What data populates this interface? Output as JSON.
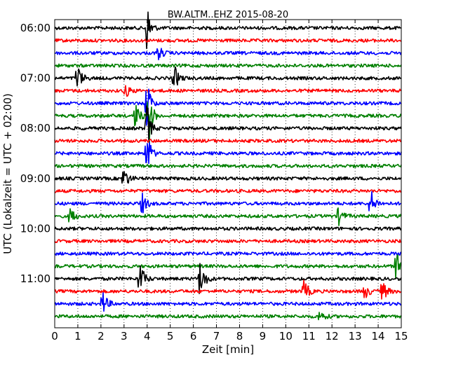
{
  "chart_data": {
    "type": "line",
    "title": "BW.ALTM..EHZ 2015-08-20",
    "xlabel": "Zeit  [min]",
    "ylabel": "UTC (Lokalzeit = UTC + 02:00)",
    "xlim": [
      0,
      15
    ],
    "x_ticks": [
      "0",
      "1",
      "2",
      "3",
      "4",
      "5",
      "6",
      "7",
      "8",
      "9",
      "10",
      "11",
      "12",
      "13",
      "14",
      "15"
    ],
    "y_ticks": [
      "06:00",
      "07:00",
      "08:00",
      "09:00",
      "10:00",
      "11:00"
    ],
    "grid": true,
    "trace_interval_min": 15,
    "first_trace": "06:00",
    "trace_count": 24,
    "trace_colors": [
      "#000000",
      "#ff0000",
      "#0000ff",
      "#008000"
    ],
    "events": [
      {
        "trace": "06:00",
        "minute": 4.0,
        "amplitude": 1.0
      },
      {
        "trace": "06:30",
        "minute": 4.5,
        "amplitude": 0.25
      },
      {
        "trace": "07:00",
        "minute": 1.0,
        "amplitude": 0.45
      },
      {
        "trace": "07:00",
        "minute": 5.2,
        "amplitude": 0.4
      },
      {
        "trace": "07:15",
        "minute": 3.1,
        "amplitude": 0.2
      },
      {
        "trace": "07:30",
        "minute": 4.0,
        "amplitude": 1.0
      },
      {
        "trace": "07:45",
        "minute": 4.1,
        "amplitude": 1.0
      },
      {
        "trace": "07:45",
        "minute": 3.5,
        "amplitude": 0.45
      },
      {
        "trace": "08:00",
        "minute": 4.0,
        "amplitude": 1.0
      },
      {
        "trace": "08:30",
        "minute": 4.0,
        "amplitude": 1.0
      },
      {
        "trace": "09:00",
        "minute": 3.0,
        "amplitude": 0.4
      },
      {
        "trace": "09:30",
        "minute": 3.8,
        "amplitude": 0.35
      },
      {
        "trace": "09:30",
        "minute": 13.7,
        "amplitude": 0.45
      },
      {
        "trace": "09:45",
        "minute": 0.7,
        "amplitude": 0.3
      },
      {
        "trace": "09:45",
        "minute": 12.3,
        "amplitude": 0.3
      },
      {
        "trace": "10:45",
        "minute": 14.8,
        "amplitude": 0.55
      },
      {
        "trace": "11:00",
        "minute": 3.7,
        "amplitude": 0.55
      },
      {
        "trace": "11:00",
        "minute": 6.3,
        "amplitude": 0.7
      },
      {
        "trace": "11:15",
        "minute": 10.8,
        "amplitude": 0.4
      },
      {
        "trace": "11:15",
        "minute": 13.4,
        "amplitude": 0.3
      },
      {
        "trace": "11:15",
        "minute": 14.2,
        "amplitude": 0.35
      },
      {
        "trace": "11:30",
        "minute": 2.1,
        "amplitude": 0.4
      },
      {
        "trace": "11:45",
        "minute": 11.5,
        "amplitude": 0.2
      }
    ]
  }
}
